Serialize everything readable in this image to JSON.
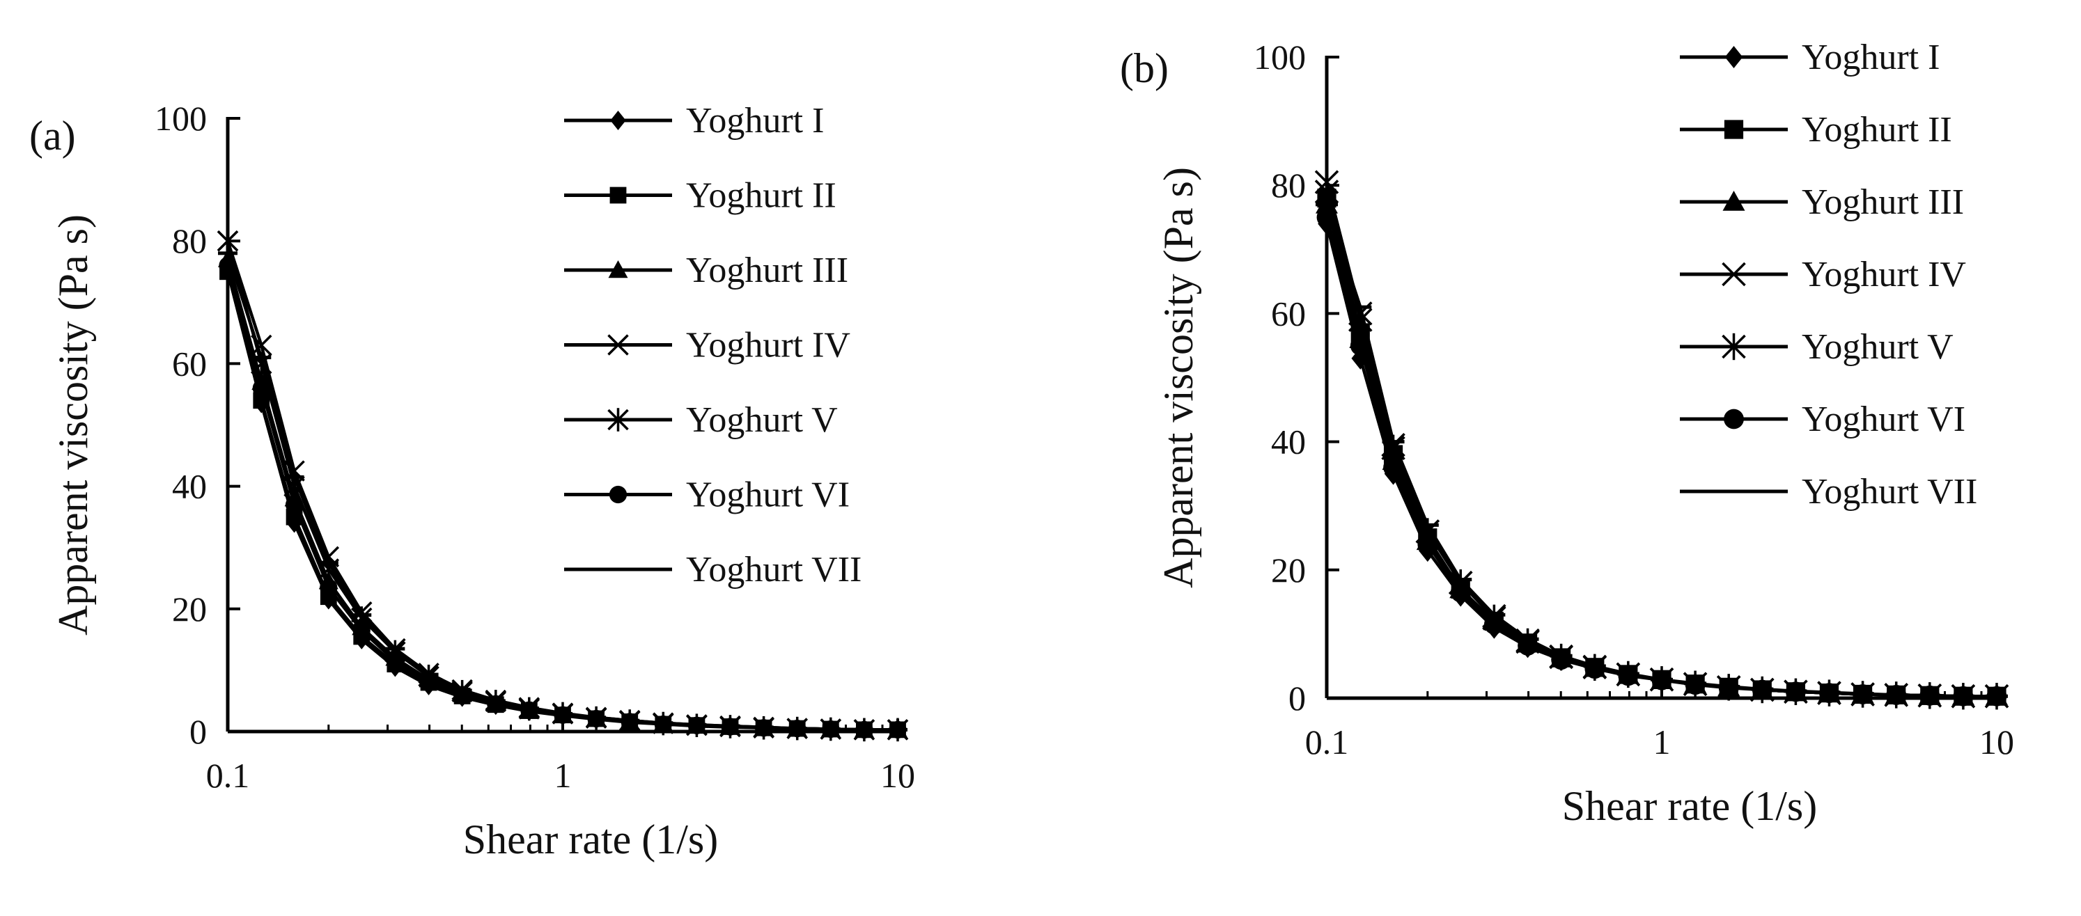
{
  "figure": {
    "style": {
      "line_color": "#000000",
      "marker_fill": "#000000",
      "background": "#ffffff"
    },
    "markers": {
      "Yoghurt I": "diamond",
      "Yoghurt II": "square",
      "Yoghurt III": "triangle",
      "Yoghurt IV": "x",
      "Yoghurt V": "star",
      "Yoghurt VI": "circle",
      "Yoghurt VII": "dash"
    }
  },
  "chart_data": [
    {
      "panel_label": "(a)",
      "type": "line",
      "x_scale": "log",
      "xlabel": "Shear rate (1/s)",
      "ylabel": "Apparent viscosity (Pa s)",
      "xlim": [
        0.1,
        10
      ],
      "ylim": [
        0,
        100
      ],
      "x_ticks": [
        "0.1",
        "1",
        "10"
      ],
      "y_ticks": [
        "0",
        "20",
        "40",
        "60",
        "80",
        "100"
      ],
      "legend_position": "top-right",
      "grid": false,
      "x": [
        0.1,
        0.126,
        0.158,
        0.2,
        0.251,
        0.316,
        0.398,
        0.501,
        0.631,
        0.794,
        1.0,
        1.259,
        1.585,
        1.995,
        2.512,
        3.162,
        3.981,
        5.012,
        6.31,
        7.943,
        10.0
      ],
      "series": [
        {
          "name": "Yoghurt I",
          "values": [
            75,
            53.5,
            34,
            21.5,
            15,
            10.5,
            7.5,
            5.6,
            4.3,
            3.3,
            2.6,
            2.0,
            1.5,
            1.2,
            0.9,
            0.7,
            0.6,
            0.5,
            0.4,
            0.3,
            0.3
          ]
        },
        {
          "name": "Yoghurt II",
          "values": [
            75,
            54,
            35,
            22,
            15.5,
            11,
            8,
            5.8,
            4.4,
            3.4,
            2.7,
            2.1,
            1.6,
            1.2,
            1.0,
            0.8,
            0.6,
            0.5,
            0.4,
            0.3,
            0.3
          ]
        },
        {
          "name": "Yoghurt III",
          "values": [
            77,
            57,
            38,
            24.5,
            17,
            12,
            8.5,
            6.2,
            4.7,
            3.6,
            2.8,
            2.2,
            1.7,
            1.3,
            1.0,
            0.8,
            0.6,
            0.5,
            0.4,
            0.3,
            0.3
          ]
        },
        {
          "name": "Yoghurt IV",
          "values": [
            80,
            63,
            42.5,
            28.5,
            19.5,
            13.5,
            9.5,
            6.8,
            5.1,
            3.9,
            3.0,
            2.3,
            1.8,
            1.4,
            1.1,
            0.9,
            0.7,
            0.5,
            0.4,
            0.3,
            0.3
          ]
        },
        {
          "name": "Yoghurt V",
          "values": [
            80,
            60,
            40,
            26.5,
            18.5,
            13,
            9,
            6.5,
            4.9,
            3.7,
            2.9,
            2.2,
            1.7,
            1.3,
            1.0,
            0.8,
            0.6,
            0.5,
            0.4,
            0.3,
            0.3
          ]
        },
        {
          "name": "Yoghurt VI",
          "values": [
            76,
            56,
            37,
            23.5,
            16.5,
            11.5,
            8.2,
            6.0,
            4.5,
            3.5,
            2.7,
            2.1,
            1.6,
            1.2,
            1.0,
            0.8,
            0.6,
            0.5,
            0.4,
            0.3,
            0.3
          ]
        },
        {
          "name": "Yoghurt VII",
          "values": [
            78,
            61,
            41.5,
            27.5,
            19,
            13.5,
            9.3,
            6.7,
            5.0,
            3.8,
            2.9,
            2.3,
            1.8,
            1.4,
            1.1,
            0.9,
            0.7,
            0.5,
            0.4,
            0.3,
            0.3
          ]
        }
      ]
    },
    {
      "panel_label": "(b)",
      "type": "line",
      "x_scale": "log",
      "xlabel": "Shear rate (1/s)",
      "ylabel": "Apparent viscosity (Pa s)",
      "xlim": [
        0.1,
        10
      ],
      "ylim": [
        0,
        100
      ],
      "x_ticks": [
        "0.1",
        "1",
        "10"
      ],
      "y_ticks": [
        "0",
        "20",
        "40",
        "60",
        "80",
        "100"
      ],
      "legend_position": "top-right",
      "grid": false,
      "x": [
        0.1,
        0.126,
        0.158,
        0.2,
        0.251,
        0.316,
        0.398,
        0.501,
        0.631,
        0.794,
        1.0,
        1.259,
        1.585,
        1.995,
        2.512,
        3.162,
        3.981,
        5.012,
        6.31,
        7.943,
        10.0
      ],
      "series": [
        {
          "name": "Yoghurt I",
          "values": [
            74,
            53,
            35,
            23,
            16,
            11,
            8,
            6,
            4.6,
            3.6,
            2.8,
            2.2,
            1.7,
            1.3,
            1.0,
            0.8,
            0.6,
            0.5,
            0.4,
            0.3,
            0.3
          ]
        },
        {
          "name": "Yoghurt II",
          "values": [
            78,
            57,
            38,
            25,
            17,
            12,
            8.6,
            6.3,
            4.8,
            3.7,
            2.9,
            2.2,
            1.7,
            1.3,
            1.0,
            0.8,
            0.6,
            0.5,
            0.4,
            0.3,
            0.3
          ]
        },
        {
          "name": "Yoghurt III",
          "values": [
            77,
            56,
            37,
            24.5,
            17,
            12,
            8.5,
            6.2,
            4.7,
            3.6,
            2.8,
            2.2,
            1.7,
            1.3,
            1.0,
            0.8,
            0.6,
            0.5,
            0.4,
            0.3,
            0.3
          ]
        },
        {
          "name": "Yoghurt IV",
          "values": [
            80.5,
            60,
            39.5,
            26,
            18,
            12.8,
            9.0,
            6.5,
            4.9,
            3.7,
            2.9,
            2.2,
            1.7,
            1.3,
            1.0,
            0.8,
            0.6,
            0.5,
            0.4,
            0.3,
            0.3
          ]
        },
        {
          "name": "Yoghurt V",
          "values": [
            79,
            59,
            39,
            26,
            18,
            12.5,
            8.8,
            6.4,
            4.8,
            3.7,
            2.9,
            2.2,
            1.7,
            1.3,
            1.0,
            0.8,
            0.6,
            0.5,
            0.4,
            0.3,
            0.3
          ]
        },
        {
          "name": "Yoghurt VI",
          "values": [
            75,
            55,
            36,
            24,
            16.5,
            11.5,
            8.2,
            6.0,
            4.6,
            3.5,
            2.8,
            2.1,
            1.6,
            1.3,
            1.0,
            0.8,
            0.6,
            0.5,
            0.4,
            0.3,
            0.3
          ]
        },
        {
          "name": "Yoghurt VII",
          "values": [
            77,
            61,
            40,
            27,
            18.5,
            13,
            9.2,
            6.6,
            5.0,
            3.8,
            2.9,
            2.3,
            1.8,
            1.4,
            1.1,
            0.9,
            0.7,
            0.5,
            0.4,
            0.3,
            0.3
          ]
        }
      ]
    }
  ]
}
